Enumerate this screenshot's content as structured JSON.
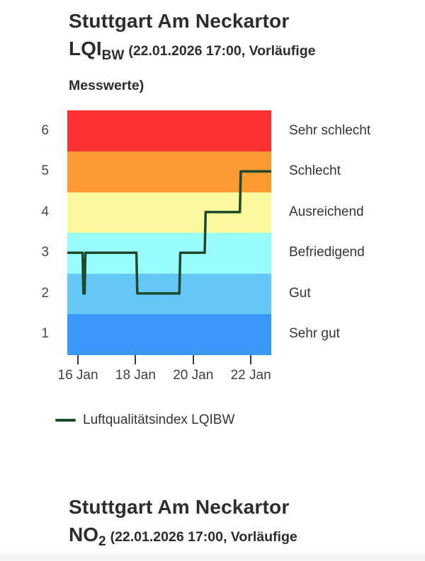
{
  "page": {
    "background": "#ffffff",
    "bottom_strip_color": "#f5f5f5"
  },
  "chart1": {
    "station": "Stuttgart Am Neckartor",
    "metric": "LQI",
    "metric_sub": "BW",
    "subtitle1": "(22.01.2026 17:00, Vorläufige",
    "subtitle2": "Messwerte)",
    "legend_label": "Luftqualitätsindex LQIBW"
  },
  "chart2": {
    "station": "Stuttgart Am Neckartor",
    "metric": "NO",
    "metric_sub": "2",
    "subtitle1": "(22.01.2026 17:00, Vorläufige"
  },
  "chart_data": {
    "type": "line",
    "title": "Stuttgart Am Neckartor LQIBW (22.01.2026 17:00, Vorläufige Messwerte)",
    "line_style": "step",
    "grid": false,
    "legend_position": "bottom-left",
    "x_axis": {
      "unit": "day of January",
      "min_day": 15.63,
      "max_day": 22.71,
      "tick_days": [
        16,
        18,
        20,
        22
      ],
      "tick_labels": [
        "16 Jan",
        "18 Jan",
        "20 Jan",
        "22 Jan"
      ]
    },
    "y_axis": {
      "range": [
        0.5,
        6.5
      ],
      "tick_values": [
        6,
        5,
        4,
        3,
        2,
        1
      ]
    },
    "bands": [
      {
        "value": 6,
        "label": "Sehr schlecht",
        "color": "#fc3131"
      },
      {
        "value": 5,
        "label": "Schlecht",
        "color": "#fd9b33"
      },
      {
        "value": 4,
        "label": "Ausreichend",
        "color": "#fbf99d"
      },
      {
        "value": 3,
        "label": "Befriedigend",
        "color": "#99fdfd"
      },
      {
        "value": 2,
        "label": "Gut",
        "color": "#64c7f8"
      },
      {
        "value": 1,
        "label": "Sehr gut",
        "color": "#3b98f8"
      }
    ],
    "series": [
      {
        "name": "Luftqualitätsindex LQIBW",
        "color": "#1d4a2c",
        "stroke_width": 3.5,
        "points": [
          [
            15.63,
            3
          ],
          [
            16.16,
            3
          ],
          [
            16.19,
            2
          ],
          [
            16.23,
            2
          ],
          [
            16.26,
            3
          ],
          [
            18.03,
            3
          ],
          [
            18.06,
            2
          ],
          [
            19.52,
            2
          ],
          [
            19.55,
            3
          ],
          [
            20.4,
            3
          ],
          [
            20.43,
            4
          ],
          [
            21.62,
            4
          ],
          [
            21.65,
            5
          ],
          [
            22.71,
            5
          ]
        ],
        "segments": [
          {
            "from_day": 15.63,
            "to_day": 16.17,
            "value": 3
          },
          {
            "from_day": 16.19,
            "to_day": 16.24,
            "value": 2
          },
          {
            "from_day": 16.26,
            "to_day": 18.03,
            "value": 3
          },
          {
            "from_day": 18.06,
            "to_day": 19.52,
            "value": 2
          },
          {
            "from_day": 19.55,
            "to_day": 20.4,
            "value": 3
          },
          {
            "from_day": 20.43,
            "to_day": 21.62,
            "value": 4
          },
          {
            "from_day": 21.65,
            "to_day": 22.71,
            "value": 5
          }
        ]
      }
    ]
  }
}
